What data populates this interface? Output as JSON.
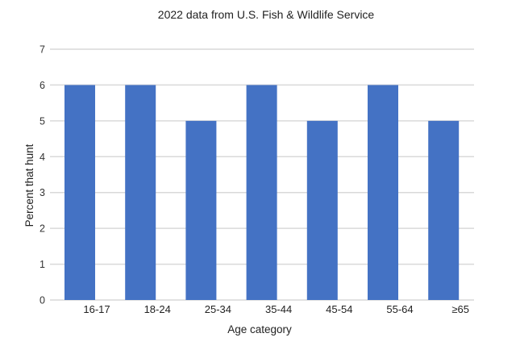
{
  "chart_data": {
    "type": "bar",
    "title": "2022 data from U.S. Fish & Wildlife Service",
    "xlabel": "Age category",
    "ylabel": "Percent that hunt",
    "categories": [
      "16-17",
      "18-24",
      "25-34",
      "35-44",
      "45-54",
      "55-64",
      "≥65"
    ],
    "values": [
      6,
      6,
      5,
      6,
      5,
      6,
      5
    ],
    "ylim": [
      0,
      7
    ],
    "yticks": [
      "0",
      "1",
      "2",
      "3",
      "4",
      "5",
      "6",
      "7"
    ],
    "grid": true,
    "legend": "none",
    "bar_color": "#4472C4",
    "grid_color": "#D9D9D9"
  }
}
